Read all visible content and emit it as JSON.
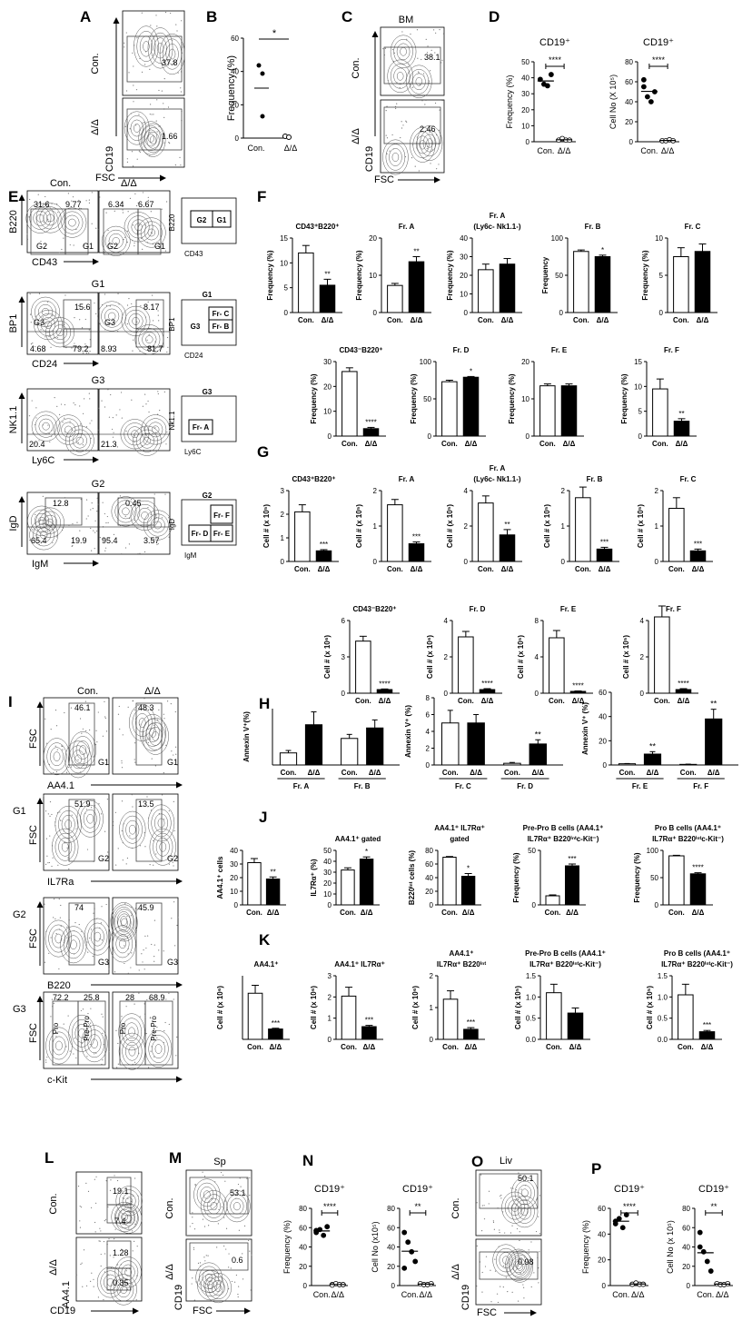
{
  "panel_letters": [
    "A",
    "B",
    "C",
    "D",
    "E",
    "F",
    "G",
    "H",
    "I",
    "J",
    "K",
    "L",
    "M",
    "N",
    "O",
    "P"
  ],
  "common": {
    "con": "Con.",
    "dd": "Δ/Δ",
    "fsc": "FSC",
    "cd19": "CD19",
    "sig": "*",
    "sig2": "**",
    "sig3": "***",
    "sig4": "****"
  },
  "A": {
    "gates": [
      "37.8",
      "1.66"
    ]
  },
  "B": {
    "ylabel": "Frequency (%)",
    "ticks": [
      "0",
      "20",
      "40",
      "60"
    ],
    "sig": "*"
  },
  "C": {
    "title": "BM",
    "gates": [
      "38.1",
      "2.46"
    ]
  },
  "D": {
    "left": {
      "title": "CD19⁺",
      "ylabel": "Frequency (%)",
      "ticks": [
        "0",
        "10",
        "20",
        "30",
        "40",
        "50"
      ],
      "sig": "****"
    },
    "right": {
      "title": "CD19⁺",
      "ylabel": "Cell No (X 10⁵)",
      "ticks": [
        "0",
        "20",
        "40",
        "60",
        "80"
      ],
      "sig": "****"
    }
  },
  "E": {
    "row1": {
      "gates": [
        "31.6",
        "9.77",
        "6.34",
        "6.67"
      ],
      "regions": [
        "G2",
        "G1",
        "G2",
        "G1"
      ],
      "yaxis": "B220",
      "xaxis": "CD43",
      "key": [
        "G2",
        "G1"
      ],
      "key_y": "B220",
      "key_x": "CD43"
    },
    "row2": {
      "title": "G1",
      "gates": [
        "15.6",
        "4.68",
        "79.2",
        "8.17",
        "8.93",
        "81.7"
      ],
      "regions": [
        "G3",
        "G3"
      ],
      "yaxis": "BP1",
      "xaxis": "CD24",
      "key": [
        "G1",
        "Fr- C",
        "G3",
        "Fr- B"
      ],
      "key_y": "BP1",
      "key_x": "CD24"
    },
    "row3": {
      "title": "G3",
      "gates": [
        "20.4",
        "21.3"
      ],
      "yaxis": "NK1.1",
      "xaxis": "Ly6C",
      "key": [
        "G3",
        "Fr- A"
      ],
      "key_y": "Nk1.1",
      "key_x": "Ly6C"
    },
    "row4": {
      "title": "G2",
      "gates": [
        "12.8",
        "65.4",
        "19.9",
        "0.45",
        "95.4",
        "3.57"
      ],
      "yaxis": "IgD",
      "xaxis": "IgM",
      "key": [
        "G2",
        "Fr- F",
        "Fr- D",
        "Fr- E"
      ],
      "key_y": "IgD",
      "key_x": "IgM"
    }
  },
  "F": {
    "charts": [
      {
        "title": "CD43⁺B220⁺",
        "ylabel": "Frequency (%)",
        "ticks": [
          "0",
          "5",
          "10",
          "15"
        ],
        "sig": "**"
      },
      {
        "title": "Fr. A",
        "ylabel": "Frequency (%)",
        "ticks": [
          "0",
          "10",
          "20"
        ],
        "sig": "**"
      },
      {
        "title": "Fr. A",
        "subtitle": "(Ly6c- Nk1.1-)",
        "ylabel": "Frequency (%)",
        "ticks": [
          "0",
          "10",
          "20",
          "30",
          "40"
        ],
        "sig": ""
      },
      {
        "title": "Fr. B",
        "ylabel": "Frequency",
        "ticks": [
          "0",
          "50",
          "100"
        ],
        "sig": "*"
      },
      {
        "title": "Fr. C",
        "ylabel": "Frequency (%)",
        "ticks": [
          "0",
          "5",
          "10"
        ],
        "sig": ""
      },
      {
        "title": "CD43⁻B220⁺",
        "ylabel": "Frequency (%)",
        "ticks": [
          "0",
          "10",
          "20",
          "30"
        ],
        "sig": "****"
      },
      {
        "title": "Fr. D",
        "ylabel": "Frequency (%)",
        "ticks": [
          "0",
          "50",
          "100"
        ],
        "sig": "*"
      },
      {
        "title": "Fr. E",
        "ylabel": "Frequency (%)",
        "ticks": [
          "0",
          "10",
          "20"
        ],
        "sig": ""
      },
      {
        "title": "Fr. F",
        "ylabel": "Frequency (%)",
        "ticks": [
          "0",
          "5",
          "10",
          "15"
        ],
        "sig": "**"
      }
    ]
  },
  "G": {
    "charts": [
      {
        "title": "CD43⁺B220⁺",
        "ylabel": "Cell # (x 10⁵)",
        "ticks": [
          "0",
          "1",
          "2",
          "3"
        ],
        "sig": "***"
      },
      {
        "title": "Fr. A",
        "ylabel": "Cell # (x 10⁵)",
        "ticks": [
          "0",
          "1",
          "2"
        ],
        "sig": "***"
      },
      {
        "title": "Fr. A",
        "subtitle": "(Ly6c- Nk1.1-)",
        "ylabel": "Cell # (x 10⁵)",
        "ticks": [
          "0",
          "2",
          "4"
        ],
        "sig": "**"
      },
      {
        "title": "Fr. B",
        "ylabel": "Cell # (x 10⁵)",
        "ticks": [
          "0",
          "1",
          "2"
        ],
        "sig": "***"
      },
      {
        "title": "Fr. C",
        "ylabel": "Cell # (x 10⁵)",
        "ticks": [
          "0",
          "1",
          "2"
        ],
        "sig": "***"
      },
      {
        "title": "CD43⁻B220⁺",
        "ylabel": "Cell # (x 10⁶)",
        "ticks": [
          "0",
          "3",
          "6"
        ],
        "sig": "****"
      },
      {
        "title": "Fr. D",
        "ylabel": "Cell # (x 10⁶)",
        "ticks": [
          "0",
          "2",
          "4"
        ],
        "sig": "****"
      },
      {
        "title": "Fr. E",
        "ylabel": "Cell # (x 10⁵)",
        "ticks": [
          "0",
          "4",
          "8"
        ],
        "sig": "****"
      },
      {
        "title": "Fr. F",
        "ylabel": "Cell # (x 10⁵)",
        "ticks": [
          "0",
          "2",
          "4"
        ],
        "sig": "****"
      }
    ]
  },
  "H": {
    "charts": [
      {
        "ylabel": "Annexin V⁺(%)",
        "groups": [
          "Fr. A",
          "Fr. B"
        ],
        "sig": [
          "",
          ""
        ]
      },
      {
        "ylabel": "Annexin V⁺ (%)",
        "ticks": [
          "0",
          "2",
          "4",
          "6",
          "8"
        ],
        "groups": [
          "Fr. C",
          "Fr. D"
        ],
        "sig": [
          "",
          "**"
        ]
      },
      {
        "ylabel": "Annexin V⁺ (%)",
        "ticks": [
          "0",
          "20",
          "40",
          "60"
        ],
        "groups": [
          "Fr. E",
          "Fr. F"
        ],
        "sig": [
          "**",
          "**"
        ]
      }
    ]
  },
  "I": {
    "rows": [
      {
        "label": "",
        "yaxis": "FSC",
        "xaxis": "AA4.1",
        "gates": [
          "46.1",
          "48.3"
        ],
        "region": "G1"
      },
      {
        "label": "G1",
        "yaxis": "FSC",
        "xaxis": "IL7Ra",
        "gates": [
          "51.9",
          "13.5"
        ],
        "region": "G2"
      },
      {
        "label": "G2",
        "yaxis": "FSC",
        "xaxis": "B220",
        "gates": [
          "74",
          "45.9"
        ],
        "region": "G3"
      },
      {
        "label": "G3",
        "yaxis": "FSC",
        "xaxis": "c-Kit",
        "gates": [
          "72.2",
          "25.8",
          "28",
          "68.9"
        ],
        "regions": [
          "Pro",
          "Pre-Pro"
        ]
      }
    ]
  },
  "J": {
    "charts": [
      {
        "title": "",
        "ylabel": "AA4.1⁺ cells",
        "ticks": [
          "0",
          "10",
          "20",
          "30",
          "40"
        ],
        "sig": "**"
      },
      {
        "title": "AA4.1⁺ gated",
        "ylabel": "IL7Rα⁺ (%)",
        "ticks": [
          "0",
          "10",
          "20",
          "30",
          "40",
          "50"
        ],
        "sig": "*"
      },
      {
        "title": "AA4.1⁺ IL7Rα⁺",
        "subtitle": "gated",
        "ylabel": "B220ⁱⁿᵗ cells (%)",
        "ticks": [
          "0",
          "20",
          "40",
          "60",
          "80"
        ],
        "sig": "*"
      },
      {
        "title": "Pre-Pro B cells  (AA4.1⁺",
        "subtitle": "IL7Rα⁺ B220ⁱⁿᵗc-Kit⁻)",
        "ylabel": "Frequency (%)",
        "ticks": [
          "0",
          "50"
        ],
        "sig": "***"
      },
      {
        "title": "Pro B cells  (AA4.1⁺",
        "subtitle": "IL7Rα⁺ B220ⁱⁿᵗc-Kit⁻)",
        "ylabel": "Frequency (%)",
        "ticks": [
          "0",
          "50",
          "100"
        ],
        "sig": "****"
      }
    ]
  },
  "K": {
    "charts": [
      {
        "title": "AA4.1⁺",
        "ylabel": "Cell # (x 10⁶)",
        "ticks": [],
        "sig": "***"
      },
      {
        "title": "AA4.1⁺ IL7Rα⁺",
        "ylabel": "Cell # (x 10⁶)",
        "ticks": [
          "0",
          "1",
          "2",
          "3"
        ],
        "sig": "***"
      },
      {
        "title": "AA4.1⁺",
        "subtitle": "IL7Rα⁺ B220ⁱⁿᵗ",
        "ylabel": "Cell # (x 10⁶)",
        "ticks": [
          "0",
          "1",
          "2"
        ],
        "sig": "***"
      },
      {
        "title": "Pre-Pro B cells  (AA4.1⁺",
        "subtitle": "IL7Rα⁺ B220ⁱⁿᵗc-Kit⁻)",
        "ylabel": "Cell # (x 10⁵)",
        "ticks": [
          "0.0",
          "0.5",
          "1.0",
          "1.5"
        ],
        "sig": ""
      },
      {
        "title": "Pro B cells  (AA4.1⁺",
        "subtitle": "IL7Rα⁺ B220ⁱⁿᵗc-Kit⁻)",
        "ylabel": "Cell # (x 10⁵)",
        "ticks": [
          "0.0",
          "0.5",
          "1.0",
          "1.5"
        ],
        "sig": "***"
      }
    ]
  },
  "L": {
    "gates": [
      "19.1",
      "7.4",
      "1.28",
      "0.35"
    ],
    "yaxis": "AA4.1",
    "xaxis": "CD19"
  },
  "M": {
    "title": "Sp",
    "gates": [
      "53.1",
      "0.6"
    ]
  },
  "N": {
    "left": {
      "title": "CD19⁺",
      "ylabel": "Frequency (%)",
      "ticks": [
        "0",
        "20",
        "40",
        "60",
        "80"
      ],
      "sig": "****"
    },
    "right": {
      "title": "CD19⁺",
      "ylabel": "Cell No (x10⁵)",
      "ticks": [
        "0",
        "20",
        "40",
        "60",
        "80"
      ],
      "sig": "**"
    }
  },
  "O": {
    "title": "Liv",
    "gates": [
      "50.1",
      "0.98"
    ]
  },
  "P": {
    "left": {
      "title": "CD19⁺",
      "ylabel": "Frequency (%)",
      "ticks": [
        "0",
        "20",
        "40",
        "60"
      ],
      "sig": "****"
    },
    "right": {
      "title": "CD19⁺",
      "ylabel": "Cell No (x 10⁵)",
      "ticks": [
        "0",
        "20",
        "40",
        "60",
        "80"
      ],
      "sig": "**"
    }
  }
}
